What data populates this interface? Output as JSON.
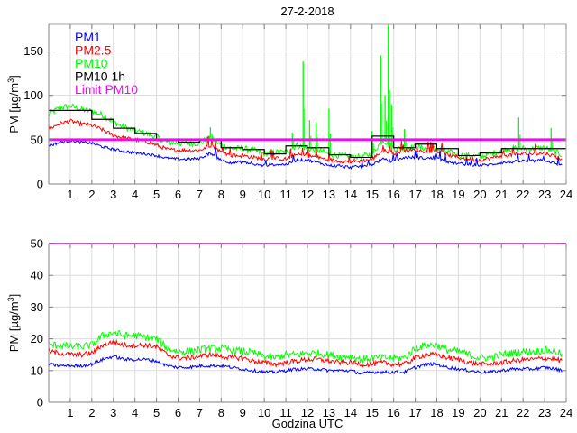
{
  "chart_data": [
    {
      "type": "line",
      "title": "27-2-2018",
      "xlabel": "",
      "ylabel": "PM [µg/m³]",
      "ylabel_base": "PM [µg/m",
      "ylabel_sup": "3",
      "ylabel_end": "]",
      "xlim": [
        0,
        24
      ],
      "ylim": [
        0,
        180
      ],
      "xticks": [
        "1",
        "2",
        "3",
        "4",
        "5",
        "6",
        "7",
        "8",
        "9",
        "10",
        "11",
        "12",
        "13",
        "14",
        "15",
        "16",
        "17",
        "18",
        "19",
        "20",
        "21",
        "22",
        "23",
        "24"
      ],
      "yticks": [
        "0",
        "50",
        "100",
        "150"
      ],
      "ytick_values": [
        0,
        50,
        100,
        150
      ],
      "grid": true,
      "legend_position": "top-left",
      "legend": [
        {
          "name": "PM1",
          "color": "#0000ff"
        },
        {
          "name": "PM2.5",
          "color": "#ff0000"
        },
        {
          "name": "PM10",
          "color": "#00ff00"
        },
        {
          "name": "PM10 1h",
          "color": "#000000"
        },
        {
          "name": "Limit PM10",
          "color": "#ff00ff"
        }
      ],
      "series": [
        {
          "name": "PM10",
          "color": "#00ff00",
          "x": [
            0,
            0.5,
            1,
            1.5,
            2,
            2.5,
            3,
            3.5,
            4,
            4.5,
            5,
            5.5,
            6,
            6.5,
            7,
            7.5,
            8,
            8.5,
            9,
            9.5,
            10,
            10.5,
            11,
            11.5,
            12,
            12.5,
            13,
            13.5,
            14,
            14.5,
            15,
            15.5,
            16,
            16.5,
            17,
            17.5,
            18,
            18.5,
            19,
            19.5,
            20,
            20.5,
            21,
            21.5,
            22,
            22.5,
            23,
            23.5,
            23.8
          ],
          "values": [
            78,
            86,
            88,
            84,
            82,
            78,
            70,
            64,
            60,
            57,
            53,
            47,
            46,
            46,
            46,
            52,
            44,
            40,
            40,
            38,
            34,
            36,
            36,
            44,
            40,
            38,
            34,
            32,
            31,
            31,
            34,
            50,
            40,
            40,
            42,
            40,
            40,
            36,
            33,
            32,
            31,
            34,
            38,
            40,
            40,
            40,
            41,
            36,
            33
          ]
        },
        {
          "name": "PM2.5",
          "color": "#ff0000",
          "x": [
            0,
            0.5,
            1,
            1.5,
            2,
            2.5,
            3,
            3.5,
            4,
            4.5,
            5,
            5.5,
            6,
            6.5,
            7,
            7.5,
            8,
            8.5,
            9,
            9.5,
            10,
            10.5,
            11,
            11.5,
            12,
            12.5,
            13,
            13.5,
            14,
            14.5,
            15,
            15.5,
            16,
            16.5,
            17,
            17.5,
            18,
            18.5,
            19,
            19.5,
            20,
            20.5,
            21,
            21.5,
            22,
            22.5,
            23,
            23.5,
            23.8
          ],
          "values": [
            62,
            68,
            71,
            68,
            66,
            61,
            55,
            52,
            50,
            48,
            44,
            39,
            38,
            38,
            38,
            44,
            36,
            32,
            32,
            30,
            28,
            29,
            28,
            33,
            32,
            30,
            27,
            26,
            25,
            26,
            28,
            38,
            34,
            38,
            38,
            37,
            37,
            33,
            30,
            28,
            27,
            29,
            32,
            33,
            34,
            34,
            35,
            31,
            28
          ]
        },
        {
          "name": "PM1",
          "color": "#0000ff",
          "x": [
            0,
            0.5,
            1,
            1.5,
            2,
            2.5,
            3,
            3.5,
            4,
            4.5,
            5,
            5.5,
            6,
            6.5,
            7,
            7.5,
            8,
            8.5,
            9,
            9.5,
            10,
            10.5,
            11,
            11.5,
            12,
            12.5,
            13,
            13.5,
            14,
            14.5,
            15,
            15.5,
            16,
            16.5,
            17,
            17.5,
            18,
            18.5,
            19,
            19.5,
            20,
            20.5,
            21,
            21.5,
            22,
            22.5,
            23,
            23.5,
            23.8
          ],
          "values": [
            43,
            47,
            49,
            47,
            46,
            42,
            39,
            37,
            35,
            34,
            32,
            29,
            28,
            28,
            29,
            35,
            27,
            24,
            25,
            22,
            21,
            22,
            22,
            27,
            27,
            24,
            21,
            20,
            19,
            20,
            22,
            28,
            25,
            30,
            30,
            29,
            29,
            25,
            23,
            22,
            21,
            22,
            24,
            25,
            26,
            26,
            27,
            23,
            21
          ]
        },
        {
          "name": "PM10 1h",
          "color": "#000000",
          "step": true,
          "x": [
            0,
            1,
            2,
            3,
            4,
            5,
            6,
            7,
            8,
            9,
            10,
            11,
            12,
            13,
            14,
            15,
            16,
            17,
            18,
            19,
            20,
            21,
            22,
            23
          ],
          "values": [
            83,
            83,
            73,
            63,
            57,
            49,
            47,
            50,
            41,
            39,
            34,
            43,
            41,
            33,
            30,
            54,
            41,
            45,
            40,
            32,
            35,
            40,
            40,
            40
          ]
        },
        {
          "name": "Limit PM10",
          "color": "#ff00ff",
          "x": [
            0,
            24
          ],
          "values": [
            50,
            50
          ]
        }
      ],
      "spikes_pm10": [
        {
          "x": 7.5,
          "y": 64
        },
        {
          "x": 11.3,
          "y": 58
        },
        {
          "x": 11.8,
          "y": 138
        },
        {
          "x": 12.1,
          "y": 72
        },
        {
          "x": 12.4,
          "y": 70
        },
        {
          "x": 13.0,
          "y": 85
        },
        {
          "x": 15.0,
          "y": 60
        },
        {
          "x": 15.4,
          "y": 145
        },
        {
          "x": 15.6,
          "y": 100
        },
        {
          "x": 15.75,
          "y": 180
        },
        {
          "x": 15.9,
          "y": 90
        },
        {
          "x": 16.5,
          "y": 62
        },
        {
          "x": 21.8,
          "y": 75
        },
        {
          "x": 23.3,
          "y": 63
        }
      ]
    },
    {
      "type": "line",
      "title": "",
      "xlabel": "Godzina UTC",
      "ylabel": "PM [µg/m³]",
      "ylabel_base": "PM [µg/m",
      "ylabel_sup": "3",
      "ylabel_end": "]",
      "xlim": [
        0,
        24
      ],
      "ylim": [
        0,
        50
      ],
      "xticks": [
        "1",
        "2",
        "3",
        "4",
        "5",
        "6",
        "7",
        "8",
        "9",
        "10",
        "11",
        "12",
        "13",
        "14",
        "15",
        "16",
        "17",
        "18",
        "19",
        "20",
        "21",
        "22",
        "23",
        "24"
      ],
      "yticks": [
        "0",
        "10",
        "20",
        "30",
        "40",
        "50"
      ],
      "ytick_values": [
        0,
        10,
        20,
        30,
        40,
        50
      ],
      "grid": true,
      "series": [
        {
          "name": "PM10",
          "color": "#00ff00",
          "x": [
            0,
            0.5,
            1,
            1.5,
            2,
            2.5,
            3,
            3.5,
            4,
            4.5,
            5,
            5.5,
            6,
            6.5,
            7,
            7.5,
            8,
            8.5,
            9,
            9.5,
            10,
            10.5,
            11,
            11.5,
            12,
            12.5,
            13,
            13.5,
            14,
            14.5,
            15,
            15.5,
            16,
            16.5,
            17,
            17.5,
            18,
            18.5,
            19,
            19.5,
            20,
            20.5,
            21,
            21.5,
            22,
            22.5,
            23,
            23.5,
            23.8
          ],
          "values": [
            18,
            18,
            17.5,
            17.5,
            18,
            21,
            22,
            21,
            21,
            20.5,
            20,
            17,
            16,
            16,
            16.5,
            17,
            17,
            16.5,
            16,
            15.5,
            14.5,
            14,
            15,
            15,
            15.5,
            15.5,
            15,
            14.5,
            14.5,
            13.5,
            14,
            14,
            14,
            14,
            17,
            18,
            18,
            16.5,
            16,
            15,
            14,
            14,
            15,
            15.5,
            16,
            16,
            16.5,
            16,
            15
          ]
        },
        {
          "name": "PM2.5",
          "color": "#ff0000",
          "x": [
            0,
            0.5,
            1,
            1.5,
            2,
            2.5,
            3,
            3.5,
            4,
            4.5,
            5,
            5.5,
            6,
            6.5,
            7,
            7.5,
            8,
            8.5,
            9,
            9.5,
            10,
            10.5,
            11,
            11.5,
            12,
            12.5,
            13,
            13.5,
            14,
            14.5,
            15,
            15.5,
            16,
            16.5,
            17,
            17.5,
            18,
            18.5,
            19,
            19.5,
            20,
            20.5,
            21,
            21.5,
            22,
            22.5,
            23,
            23.5,
            23.8
          ],
          "values": [
            16,
            15.5,
            15,
            15,
            15.5,
            18,
            19,
            18,
            18,
            18,
            17.5,
            15,
            14,
            14,
            14.5,
            15,
            14.5,
            14,
            14,
            13,
            12.5,
            12,
            12.5,
            13,
            13.5,
            13.5,
            13,
            12.5,
            12.5,
            12,
            12,
            12.5,
            12,
            12,
            14,
            15,
            15,
            14,
            13.5,
            12.5,
            12,
            12,
            12.5,
            13,
            13.5,
            13.5,
            14,
            13.5,
            13
          ]
        },
        {
          "name": "PM1",
          "color": "#0000ff",
          "x": [
            0,
            0.5,
            1,
            1.5,
            2,
            2.5,
            3,
            3.5,
            4,
            4.5,
            5,
            5.5,
            6,
            6.5,
            7,
            7.5,
            8,
            8.5,
            9,
            9.5,
            10,
            10.5,
            11,
            11.5,
            12,
            12.5,
            13,
            13.5,
            14,
            14.5,
            15,
            15.5,
            16,
            16.5,
            17,
            17.5,
            18,
            18.5,
            19,
            19.5,
            20,
            20.5,
            21,
            21.5,
            22,
            22.5,
            23,
            23.5,
            23.8
          ],
          "values": [
            12,
            11.5,
            11.5,
            11.5,
            12,
            13.5,
            14.5,
            13.5,
            13.5,
            13.5,
            13,
            11.5,
            11,
            11,
            11.5,
            11.5,
            11.5,
            11,
            10.5,
            10,
            9.5,
            9.5,
            10,
            10.5,
            10.5,
            10.5,
            10,
            10,
            10,
            9,
            9.5,
            9.5,
            9.5,
            9.5,
            11,
            12,
            12,
            11,
            10.5,
            10,
            9.5,
            9.5,
            10,
            10.5,
            10.5,
            10.5,
            11,
            10.5,
            10
          ]
        },
        {
          "name": "Limit PM10",
          "color": "#ff00ff",
          "x": [
            0,
            24
          ],
          "values": [
            50,
            50
          ]
        }
      ]
    }
  ]
}
